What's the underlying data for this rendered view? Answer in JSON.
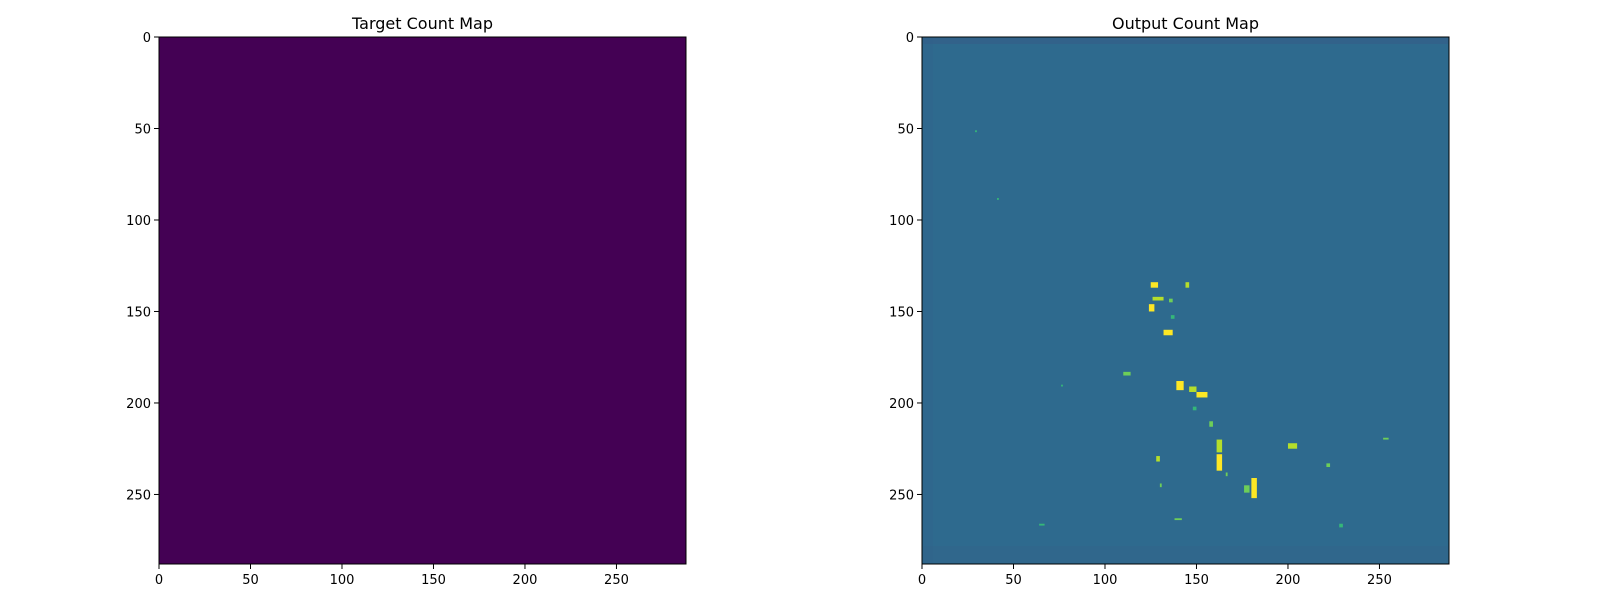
{
  "chart_data": [
    {
      "type": "heatmap",
      "title": "Target Count Map",
      "xlabel": "",
      "ylabel": "",
      "xlim": [
        0,
        288
      ],
      "ylim": [
        288,
        0
      ],
      "x_ticks": [
        0,
        50,
        100,
        150,
        200,
        250
      ],
      "y_ticks": [
        0,
        50,
        100,
        150,
        200,
        250
      ],
      "colormap": "viridis",
      "background_color": "#440154",
      "grid": false,
      "spots": []
    },
    {
      "type": "heatmap",
      "title": "Output Count Map",
      "xlabel": "",
      "ylabel": "",
      "xlim": [
        0,
        288
      ],
      "ylim": [
        288,
        0
      ],
      "x_ticks": [
        0,
        50,
        100,
        150,
        200,
        250
      ],
      "y_ticks": [
        0,
        50,
        100,
        150,
        200,
        250
      ],
      "colormap": "viridis",
      "background_color": "#2e6a8e",
      "edge_color": "#33608a",
      "grid": false,
      "spots": [
        {
          "x": 125,
          "y": 134,
          "w": 4,
          "h": 3,
          "color": "#fde725"
        },
        {
          "x": 126,
          "y": 142,
          "w": 6,
          "h": 2,
          "color": "#b5de2b"
        },
        {
          "x": 124,
          "y": 146,
          "w": 3,
          "h": 4,
          "color": "#fde725"
        },
        {
          "x": 135,
          "y": 143,
          "w": 2,
          "h": 2,
          "color": "#6ece58"
        },
        {
          "x": 144,
          "y": 134,
          "w": 2,
          "h": 3,
          "color": "#b5de2b"
        },
        {
          "x": 136,
          "y": 152,
          "w": 2,
          "h": 2,
          "color": "#35b779"
        },
        {
          "x": 132,
          "y": 160,
          "w": 5,
          "h": 3,
          "color": "#fde725"
        },
        {
          "x": 110,
          "y": 183,
          "w": 4,
          "h": 2,
          "color": "#6ece58"
        },
        {
          "x": 139,
          "y": 188,
          "w": 4,
          "h": 5,
          "color": "#fde725"
        },
        {
          "x": 146,
          "y": 191,
          "w": 4,
          "h": 3,
          "color": "#b5de2b"
        },
        {
          "x": 150,
          "y": 194,
          "w": 6,
          "h": 3,
          "color": "#fde725"
        },
        {
          "x": 157,
          "y": 210,
          "w": 2,
          "h": 3,
          "color": "#6ece58"
        },
        {
          "x": 161,
          "y": 220,
          "w": 3,
          "h": 7,
          "color": "#b5de2b"
        },
        {
          "x": 161,
          "y": 228,
          "w": 3,
          "h": 9,
          "color": "#fde725"
        },
        {
          "x": 128,
          "y": 229,
          "w": 2,
          "h": 3,
          "color": "#b5de2b"
        },
        {
          "x": 180,
          "y": 241,
          "w": 3,
          "h": 11,
          "color": "#fde725"
        },
        {
          "x": 176,
          "y": 245,
          "w": 3,
          "h": 4,
          "color": "#6ece58"
        },
        {
          "x": 200,
          "y": 222,
          "w": 5,
          "h": 3,
          "color": "#b5de2b"
        },
        {
          "x": 221,
          "y": 233,
          "w": 2,
          "h": 2,
          "color": "#6ece58"
        },
        {
          "x": 252,
          "y": 219,
          "w": 3,
          "h": 1,
          "color": "#6ece58"
        },
        {
          "x": 228,
          "y": 266,
          "w": 2,
          "h": 2,
          "color": "#35b779"
        },
        {
          "x": 64,
          "y": 266,
          "w": 3,
          "h": 1,
          "color": "#35b779"
        },
        {
          "x": 138,
          "y": 263,
          "w": 4,
          "h": 1,
          "color": "#6ece58"
        },
        {
          "x": 29,
          "y": 51,
          "w": 1,
          "h": 1,
          "color": "#35b779"
        },
        {
          "x": 41,
          "y": 88,
          "w": 1,
          "h": 1,
          "color": "#35b779"
        },
        {
          "x": 76,
          "y": 190,
          "w": 1,
          "h": 1,
          "color": "#35b779"
        },
        {
          "x": 130,
          "y": 244,
          "w": 1,
          "h": 2,
          "color": "#6ece58"
        },
        {
          "x": 148,
          "y": 202,
          "w": 2,
          "h": 2,
          "color": "#35b779"
        },
        {
          "x": 166,
          "y": 238,
          "w": 1,
          "h": 2,
          "color": "#6ece58"
        }
      ]
    }
  ]
}
